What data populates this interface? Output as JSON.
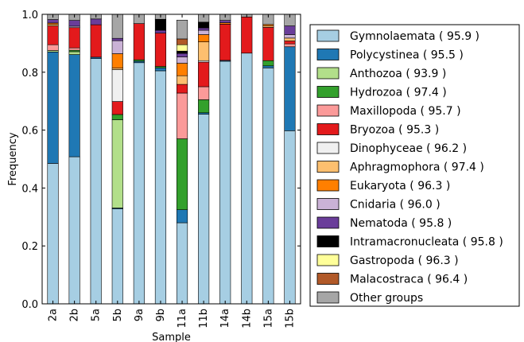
{
  "chart_data": {
    "type": "bar",
    "stacked": true,
    "xlabel": "Sample",
    "ylabel": "Frequency",
    "ylim": [
      0,
      1.0
    ],
    "yticks": [
      "0.0",
      "0.2",
      "0.4",
      "0.6",
      "0.8",
      "1.0"
    ],
    "categories": [
      "2a",
      "2b",
      "5a",
      "5b",
      "9a",
      "9b",
      "11a",
      "11b",
      "14a",
      "14b",
      "15a",
      "15b"
    ],
    "legend_position": "right",
    "series": [
      {
        "name": "Gymnolaemata ( 95.9 )",
        "color": "#a6cee3",
        "values": [
          0.485,
          0.508,
          0.847,
          0.328,
          0.833,
          0.805,
          0.28,
          0.655,
          0.838,
          0.866,
          0.815,
          0.598
        ]
      },
      {
        "name": "Polycystinea ( 95.5 )",
        "color": "#1f78b4",
        "values": [
          0.385,
          0.353,
          0.005,
          0.003,
          0.005,
          0.01,
          0.045,
          0.005,
          0.003,
          0.0,
          0.007,
          0.29
        ]
      },
      {
        "name": "Anthozoa ( 93.9 )",
        "color": "#b2df8a",
        "values": [
          0.005,
          0.01,
          0.0,
          0.305,
          0.0,
          0.0,
          0.0,
          0.0,
          0.0,
          0.0,
          0.0,
          0.0
        ]
      },
      {
        "name": "Hydrozoa ( 97.4 )",
        "color": "#33a02c",
        "values": [
          0.0,
          0.005,
          0.0,
          0.018,
          0.005,
          0.005,
          0.245,
          0.045,
          0.0,
          0.0,
          0.018,
          0.0
        ]
      },
      {
        "name": "Maxillopoda ( 95.7 )",
        "color": "#fb9a99",
        "values": [
          0.02,
          0.008,
          0.0,
          0.0,
          0.0,
          0.0,
          0.158,
          0.045,
          0.0,
          0.0,
          0.0,
          0.01
        ]
      },
      {
        "name": "Bryozoa ( 95.3 )",
        "color": "#e31a1c",
        "values": [
          0.065,
          0.07,
          0.112,
          0.045,
          0.125,
          0.115,
          0.03,
          0.085,
          0.125,
          0.125,
          0.115,
          0.01
        ]
      },
      {
        "name": "Dinophyceae ( 96.2 )",
        "color": "#f0f0f0",
        "values": [
          0.0,
          0.0,
          0.0,
          0.11,
          0.0,
          0.0,
          0.0,
          0.005,
          0.0,
          0.0,
          0.0,
          0.0
        ]
      },
      {
        "name": "Aphragmophora ( 97.4 )",
        "color": "#fdbf6f",
        "values": [
          0.005,
          0.0,
          0.0,
          0.005,
          0.0,
          0.0,
          0.03,
          0.065,
          0.0,
          0.0,
          0.005,
          0.01
        ]
      },
      {
        "name": "Eukaryota ( 96.3 )",
        "color": "#ff7f00",
        "values": [
          0.005,
          0.0,
          0.0,
          0.05,
          0.0,
          0.0,
          0.043,
          0.025,
          0.005,
          0.0,
          0.005,
          0.0
        ]
      },
      {
        "name": "Cnidaria ( 96.0 )",
        "color": "#cab2d6",
        "values": [
          0.0,
          0.005,
          0.0,
          0.045,
          0.0,
          0.0,
          0.022,
          0.015,
          0.0,
          0.0,
          0.0,
          0.012
        ]
      },
      {
        "name": "Nematoda ( 95.8 )",
        "color": "#6a3d9a",
        "values": [
          0.012,
          0.02,
          0.02,
          0.008,
          0.0,
          0.01,
          0.012,
          0.008,
          0.008,
          0.0,
          0.0,
          0.03
        ]
      },
      {
        "name": "Intramacronucleata ( 95.8 )",
        "color": "#000000",
        "values": [
          0.0,
          0.0,
          0.0,
          0.0,
          0.0,
          0.038,
          0.008,
          0.02,
          0.0,
          0.0,
          0.0,
          0.0
        ]
      },
      {
        "name": "Gastropoda ( 96.3 )",
        "color": "#ffff99",
        "values": [
          0.0,
          0.0,
          0.0,
          0.0,
          0.0,
          0.0,
          0.022,
          0.0,
          0.0,
          0.0,
          0.0,
          0.0
        ]
      },
      {
        "name": "Malacostraca ( 96.4 )",
        "color": "#b15928",
        "values": [
          0.0,
          0.0,
          0.0,
          0.0,
          0.0,
          0.0,
          0.02,
          0.0,
          0.0,
          0.0,
          0.0,
          0.0
        ]
      },
      {
        "name": "Other groups",
        "color": "#a6a6a6",
        "values": [
          0.018,
          0.021,
          0.016,
          0.083,
          0.032,
          0.017,
          0.065,
          0.027,
          0.021,
          0.009,
          0.035,
          0.04
        ]
      }
    ]
  }
}
